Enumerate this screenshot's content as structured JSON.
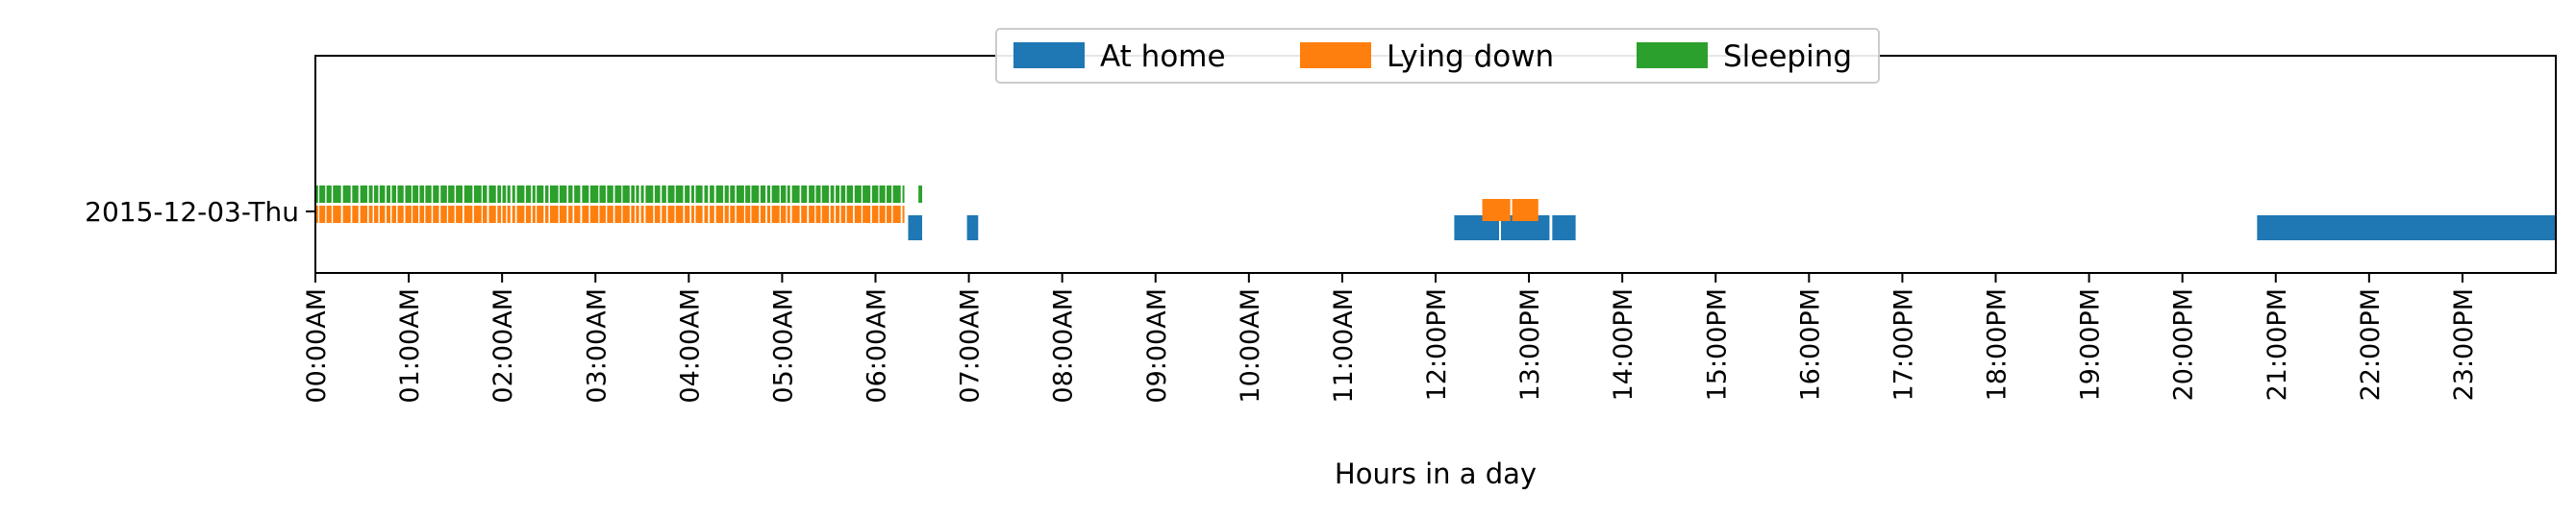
{
  "chart_data": {
    "type": "timeline",
    "title": "",
    "xlabel": "Hours in a day",
    "ylabel": "",
    "categories": [
      "2015-12-03-Thu"
    ],
    "xlim": [
      0,
      24
    ],
    "x_ticks": [
      0,
      1,
      2,
      3,
      4,
      5,
      6,
      7,
      8,
      9,
      10,
      11,
      12,
      13,
      14,
      15,
      16,
      17,
      18,
      19,
      20,
      21,
      22,
      23
    ],
    "x_tick_labels": [
      "00:00AM",
      "01:00AM",
      "02:00AM",
      "03:00AM",
      "04:00AM",
      "05:00AM",
      "06:00AM",
      "07:00AM",
      "08:00AM",
      "09:00AM",
      "10:00AM",
      "11:00AM",
      "12:00PM",
      "13:00PM",
      "14:00PM",
      "15:00PM",
      "16:00PM",
      "17:00PM",
      "18:00PM",
      "19:00PM",
      "20:00PM",
      "21:00PM",
      "22:00PM",
      "23:00PM"
    ],
    "grid": false,
    "legend_position": "top-center",
    "series": [
      {
        "name": "At home",
        "color": "#1f77b4",
        "intervals": [
          [
            6.35,
            6.5
          ],
          [
            6.98,
            7.1
          ],
          [
            12.2,
            12.68
          ],
          [
            12.7,
            13.22
          ],
          [
            13.25,
            13.5
          ],
          [
            20.8,
            24.0
          ]
        ]
      },
      {
        "name": "Lying down",
        "color": "#ff7f0e",
        "intervals": [
          [
            12.5,
            12.8
          ],
          [
            12.82,
            13.1
          ]
        ]
      },
      {
        "name": "Sleeping",
        "color": "#2ca02c",
        "intervals": []
      }
    ]
  }
}
